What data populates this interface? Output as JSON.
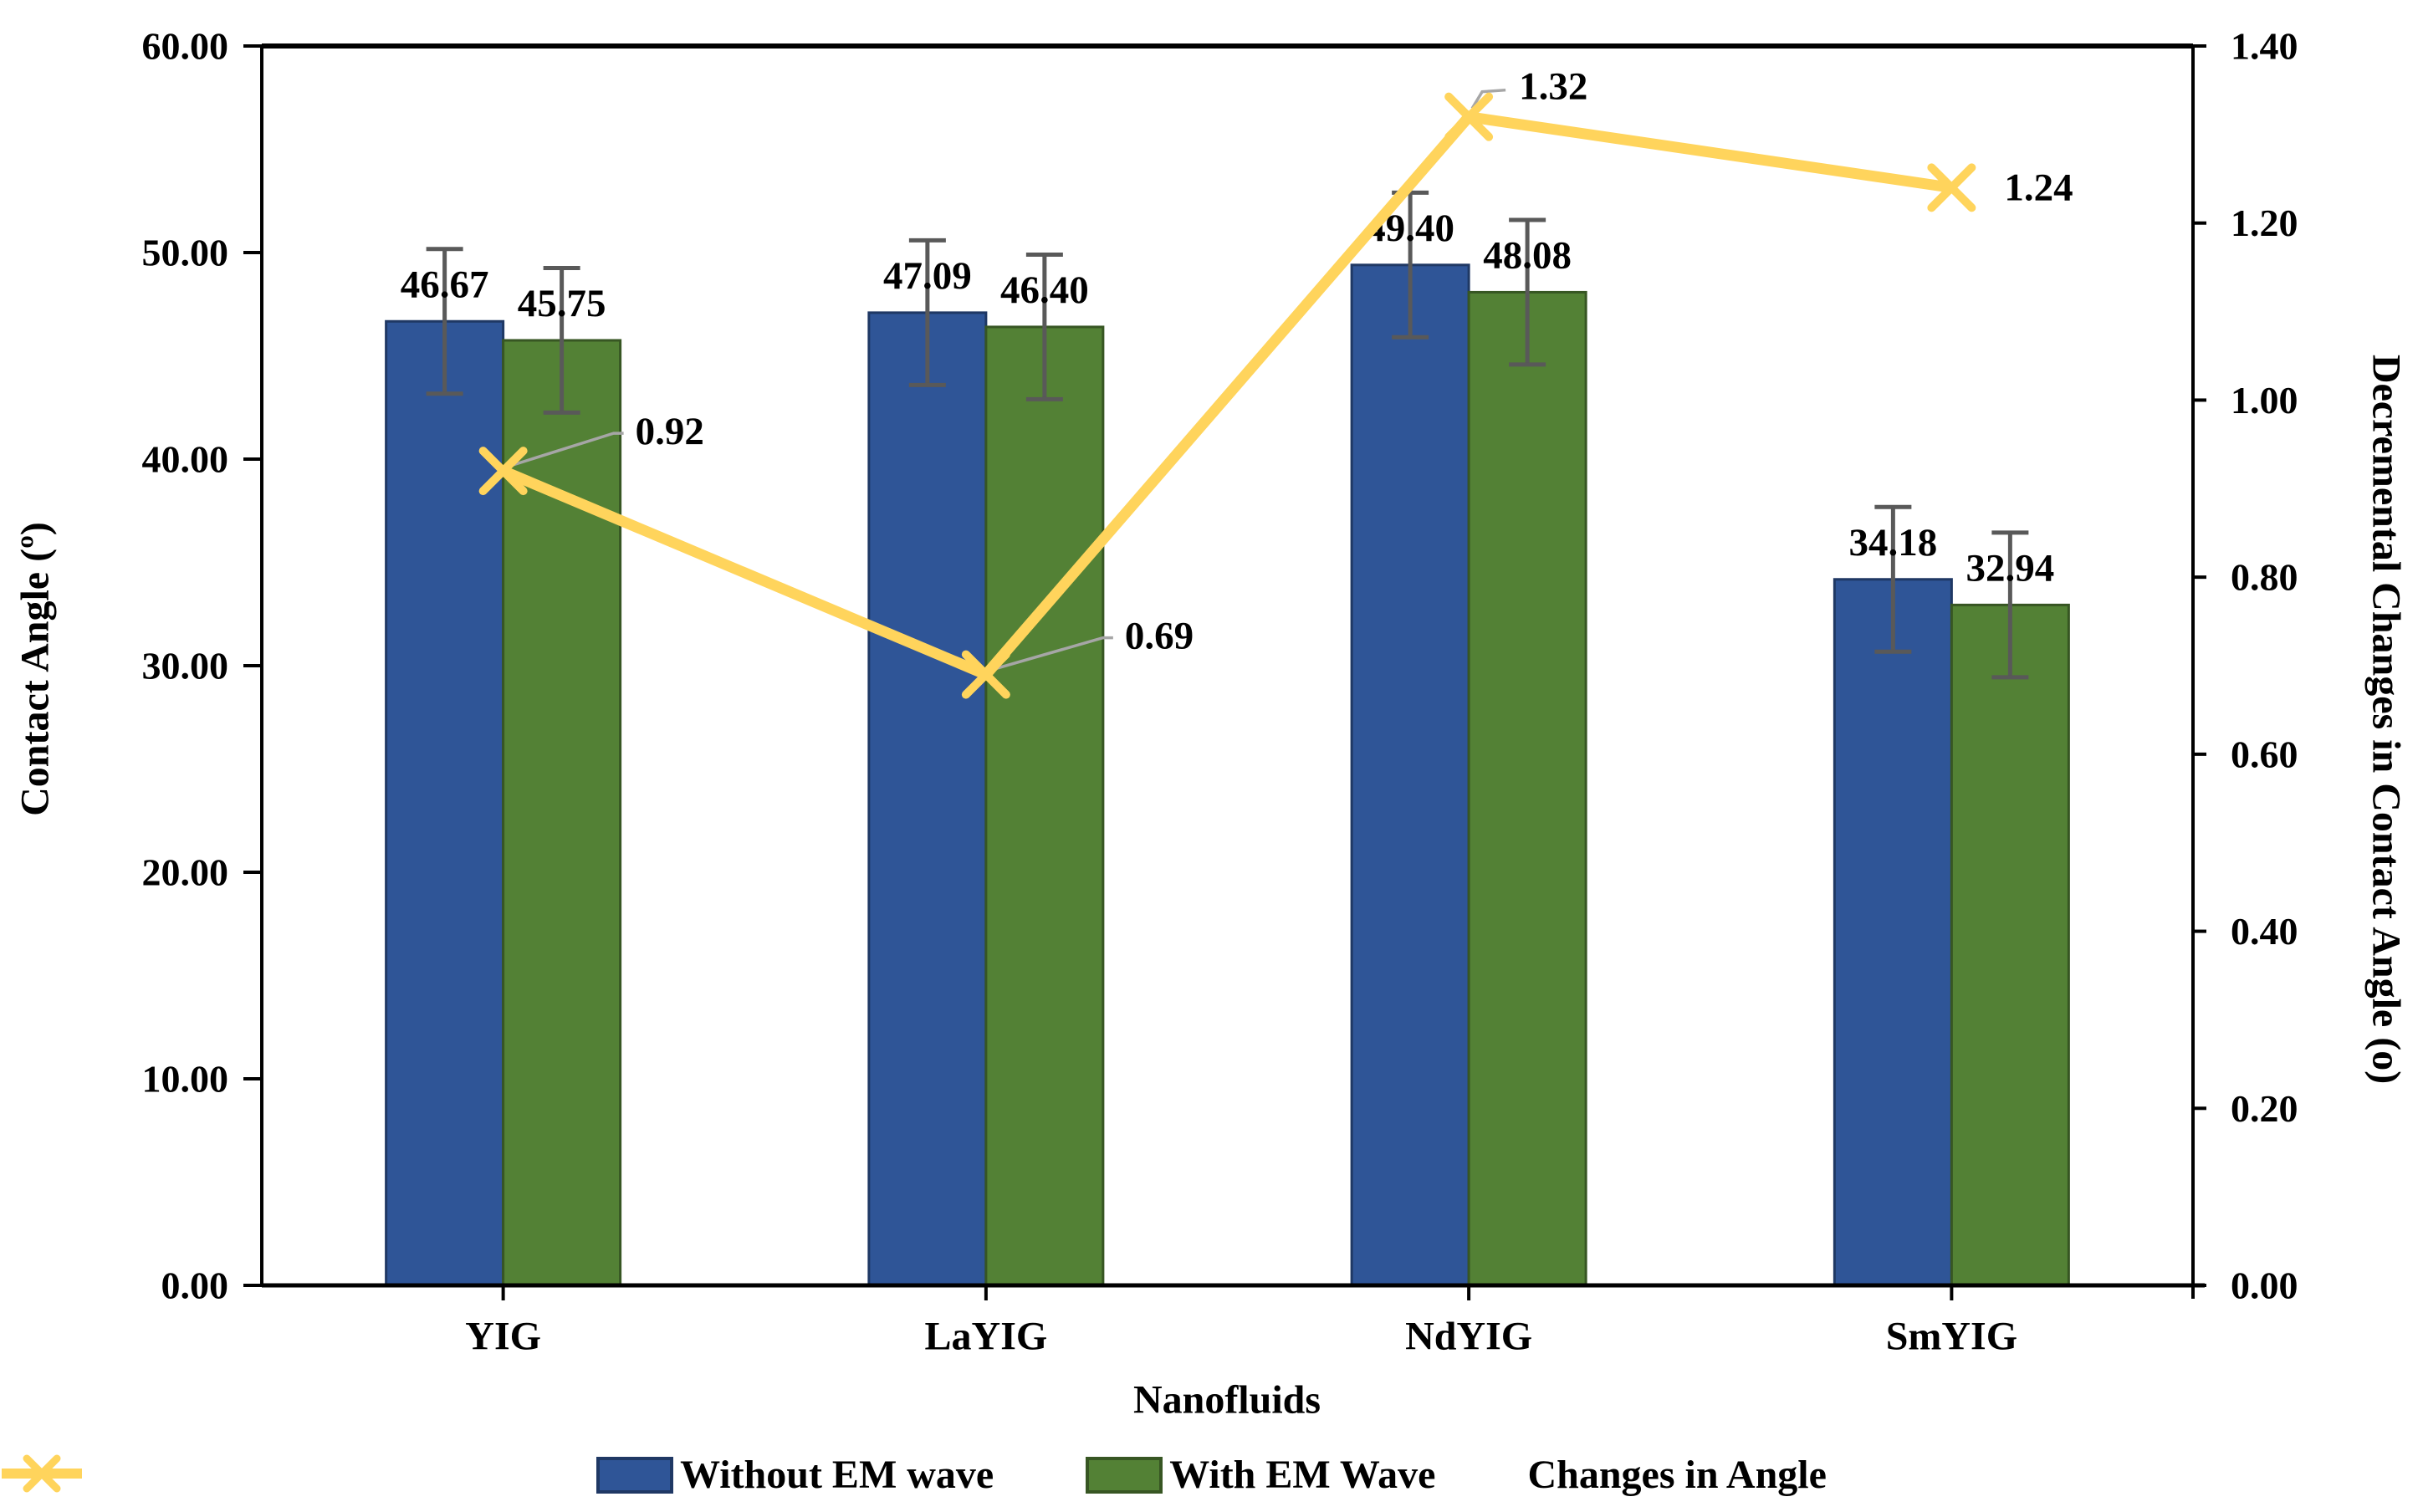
{
  "chart_data": {
    "type": "bar",
    "subtype": "clustered-bars-with-line-overlay",
    "categories": [
      "YIG",
      "LaYIG",
      "NdYIG",
      "SmYIG"
    ],
    "series": [
      {
        "name": "Without EM wave",
        "kind": "bar",
        "axis": "left",
        "color": "#2F5597",
        "border_color": "#1F3864",
        "values": [
          46.67,
          47.09,
          49.4,
          34.18
        ],
        "labels": [
          "46.67",
          "47.09",
          "49.40",
          "34.18"
        ],
        "errors": [
          3.5,
          3.5,
          3.5,
          3.5
        ]
      },
      {
        "name": "With EM Wave",
        "kind": "bar",
        "axis": "left",
        "color": "#538135",
        "border_color": "#375623",
        "values": [
          45.75,
          46.4,
          48.08,
          32.94
        ],
        "labels": [
          "45.75",
          "46.40",
          "48.08",
          "32.94"
        ],
        "errors": [
          3.5,
          3.5,
          3.5,
          3.5
        ]
      },
      {
        "name": "Changes in Angle",
        "kind": "line",
        "axis": "right",
        "color": "#FFD45C",
        "marker": "x",
        "values": [
          0.92,
          0.69,
          1.32,
          1.24
        ],
        "labels": [
          "0.92",
          "0.69",
          "1.32",
          "1.24"
        ]
      }
    ],
    "xlabel": "Nanofluids",
    "ylabel_left": "Contact Angle (º)",
    "ylabel_right": "Decremental Changes in Contact Angle (o)",
    "ylim_left": [
      0,
      60
    ],
    "yticks_left": [
      "0.00",
      "10.00",
      "20.00",
      "30.00",
      "40.00",
      "50.00",
      "60.00"
    ],
    "ylim_right": [
      0,
      1.4
    ],
    "yticks_right": [
      "0.00",
      "0.20",
      "0.40",
      "0.60",
      "0.80",
      "1.00",
      "1.20",
      "1.40"
    ],
    "grid": false,
    "legend_position": "bottom",
    "axis_color": "#000000",
    "error_bar_color": "#595959",
    "leader_line_color": "#A6A6A6",
    "background": "#FFFFFF"
  }
}
